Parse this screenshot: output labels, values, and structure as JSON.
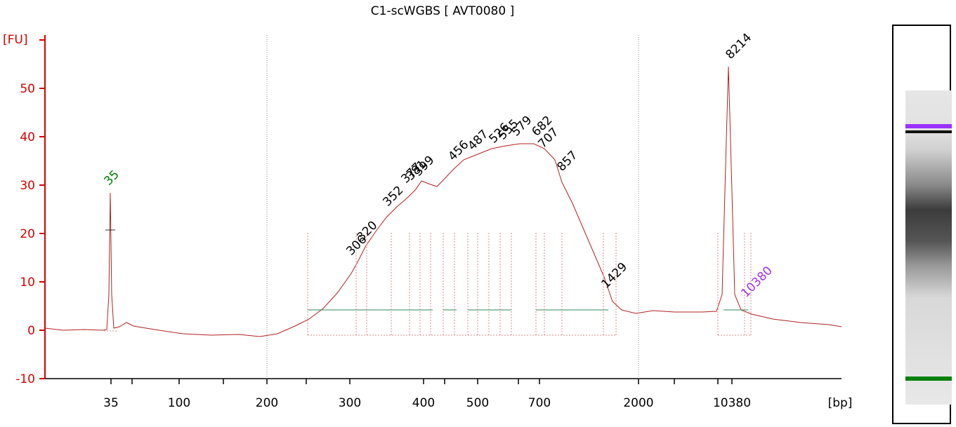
{
  "title": "C1-scWGBS  [ AVT0080 ]",
  "colors": {
    "axis": "#d40000",
    "trace": "#b22222",
    "lower_marker": "#008000",
    "upper_marker": "#9b30ff",
    "baseline": "#2e8b57"
  },
  "chart_data": {
    "type": "line",
    "ylabel": "[FU]",
    "xlabel": "[bp]",
    "ylim": [
      -10,
      55
    ],
    "y_ticks": [
      -10,
      0,
      10,
      20,
      30,
      40,
      50
    ],
    "x_tick_labels": [
      "35",
      "100",
      "200",
      "300",
      "400",
      "500",
      "700",
      "2000",
      "10380"
    ],
    "x_ticks_unlabeled": 7,
    "grid_lines_at": [
      "200",
      "2000"
    ],
    "markers": [
      {
        "label": "35",
        "color": "#008000",
        "height": 28.5
      },
      {
        "label": "10380",
        "color": "#9b30ff",
        "height": 4
      }
    ],
    "peaks": [
      {
        "label": "306",
        "height": 15
      },
      {
        "label": "320",
        "height": 18
      },
      {
        "label": "352",
        "height": 26
      },
      {
        "label": "377",
        "height": 30
      },
      {
        "label": "381",
        "height": 30.5
      },
      {
        "label": "399",
        "height": 31
      },
      {
        "label": "456",
        "height": 35
      },
      {
        "label": "487",
        "height": 36.5
      },
      {
        "label": "526",
        "height": 37
      },
      {
        "label": "555",
        "height": 38
      },
      {
        "label": "579",
        "height": 38.5
      },
      {
        "label": "682",
        "height": 39
      },
      {
        "label": "707",
        "height": 38
      },
      {
        "label": "857",
        "height": 33
      },
      {
        "label": "1429",
        "height": 8
      },
      {
        "label": "8214",
        "height": 54
      }
    ]
  }
}
